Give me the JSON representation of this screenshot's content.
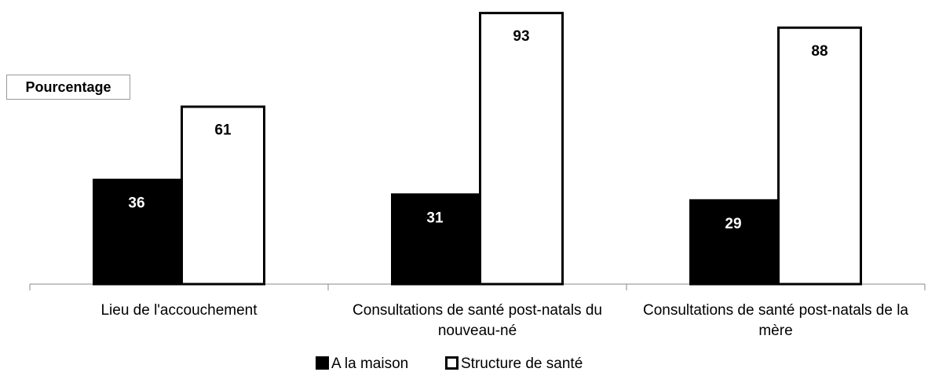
{
  "chart_data": {
    "type": "bar",
    "y_label": "Pourcentage",
    "categories": [
      "Lieu de l'accouchement",
      "Consultations de santé post-natals du nouveau-né",
      "Consultations de santé post-natals de la mère"
    ],
    "series": [
      {
        "name": "A la maison",
        "color": "#000000",
        "values": [
          36,
          31,
          29
        ]
      },
      {
        "name": "Structure de santé",
        "color": "#ffffff",
        "values": [
          61,
          93,
          88
        ]
      }
    ]
  }
}
